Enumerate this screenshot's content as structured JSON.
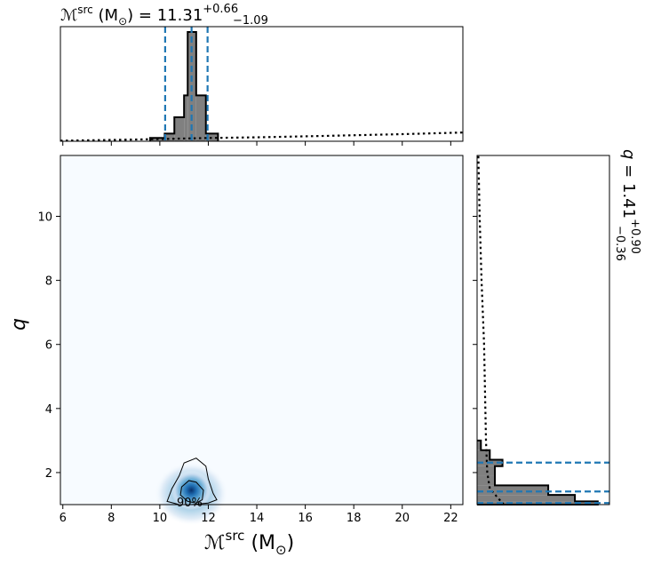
{
  "chart_data": {
    "type": "corner-plot",
    "top_title": {
      "symbol": "ℳ",
      "superscript": "src",
      "unit": "(M",
      "unit_sub": "⊙",
      "unit_close": ")",
      "equals": "=",
      "value": "11.31",
      "plus": "+0.66",
      "minus": "−1.09"
    },
    "right_title": {
      "symbol": "q",
      "equals": "=",
      "value": "1.41",
      "plus": "+0.90",
      "minus": "−0.36"
    },
    "x_axis": {
      "symbol": "ℳ",
      "superscript": "src",
      "unit": "(M",
      "unit_sub": "⊙",
      "unit_close": ")",
      "range": [
        5.9,
        22.5
      ],
      "ticks": [
        6,
        8,
        10,
        12,
        14,
        16,
        18,
        20,
        22
      ]
    },
    "y_axis": {
      "label": "q",
      "range": [
        1.0,
        11.9
      ],
      "ticks": [
        2,
        4,
        6,
        8,
        10
      ]
    },
    "contour_label": "90%",
    "mchirp_quantiles": [
      10.22,
      11.31,
      11.97
    ],
    "q_quantiles": [
      1.05,
      1.41,
      2.31
    ],
    "mchirp_hist": {
      "bins": [
        [
          9.6,
          10.2,
          0.03
        ],
        [
          10.2,
          10.6,
          0.07
        ],
        [
          10.6,
          11.0,
          0.22
        ],
        [
          11.0,
          11.15,
          0.42
        ],
        [
          11.15,
          11.5,
          1.0
        ],
        [
          11.5,
          11.9,
          0.42
        ],
        [
          11.9,
          12.4,
          0.07
        ]
      ],
      "prior": [
        [
          5.9,
          0.005
        ],
        [
          8,
          0.012
        ],
        [
          10,
          0.02
        ],
        [
          12,
          0.03
        ],
        [
          14,
          0.036
        ],
        [
          16,
          0.045
        ],
        [
          18,
          0.055
        ],
        [
          20,
          0.065
        ],
        [
          22.5,
          0.08
        ]
      ]
    },
    "q_hist": {
      "bins": [
        [
          1.0,
          1.1,
          0.95
        ],
        [
          1.1,
          1.3,
          0.77
        ],
        [
          1.3,
          1.6,
          0.56
        ],
        [
          1.6,
          1.9,
          0.14
        ],
        [
          1.9,
          2.2,
          0.14
        ],
        [
          2.2,
          2.4,
          0.2
        ],
        [
          2.4,
          2.7,
          0.1
        ],
        [
          2.7,
          3.0,
          0.03
        ]
      ],
      "prior": [
        [
          1.0,
          0.21
        ],
        [
          1.5,
          0.1
        ],
        [
          2.0,
          0.08
        ],
        [
          3.0,
          0.07
        ],
        [
          4.0,
          0.065
        ],
        [
          5.0,
          0.06
        ],
        [
          6.0,
          0.055
        ],
        [
          8.0,
          0.035
        ],
        [
          10.0,
          0.02
        ],
        [
          11.9,
          0.01
        ]
      ]
    },
    "density_2d": {
      "peak": [
        11.3,
        1.45
      ],
      "spread": [
        0.38,
        0.28
      ],
      "inner_contour": [
        [
          10.9,
          1.55
        ],
        [
          11.2,
          1.75
        ],
        [
          11.5,
          1.7
        ],
        [
          11.8,
          1.45
        ],
        [
          11.75,
          1.15
        ],
        [
          11.5,
          1.05
        ],
        [
          11.15,
          1.1
        ],
        [
          10.85,
          1.3
        ]
      ],
      "outer_contour": [
        [
          10.3,
          1.1
        ],
        [
          10.5,
          1.5
        ],
        [
          10.8,
          1.9
        ],
        [
          11.0,
          2.3
        ],
        [
          11.5,
          2.45
        ],
        [
          11.9,
          2.2
        ],
        [
          12.0,
          1.8
        ],
        [
          12.2,
          1.35
        ],
        [
          12.35,
          1.15
        ],
        [
          12.0,
          1.05
        ],
        [
          11.3,
          1.0
        ],
        [
          10.8,
          1.0
        ]
      ]
    }
  }
}
